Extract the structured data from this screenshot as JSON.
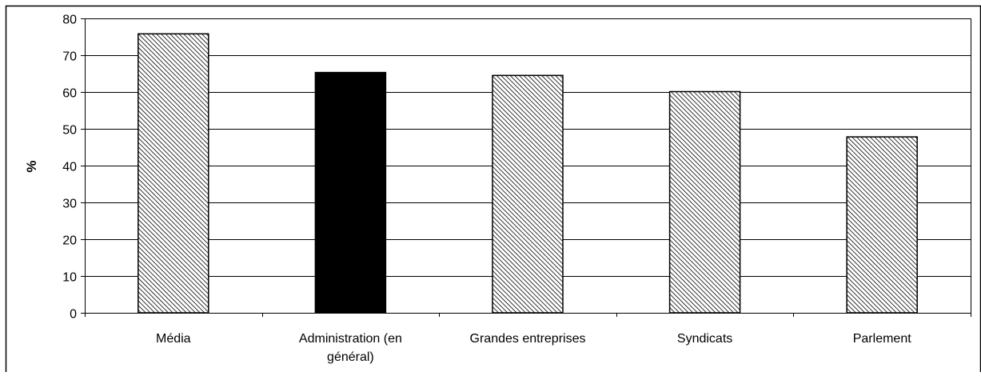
{
  "chart_data": {
    "type": "bar",
    "categories": [
      "Média",
      "Administration (en général)",
      "Grandes entreprises",
      "Syndicats",
      "Parlement"
    ],
    "category_label_lines": [
      [
        "Média"
      ],
      [
        "Administration (en",
        "général)"
      ],
      [
        "Grandes entreprises"
      ],
      [
        "Syndicats"
      ],
      [
        "Parlement"
      ]
    ],
    "values": [
      75.8,
      65.3,
      64.5,
      60.1,
      47.8
    ],
    "highlight": [
      false,
      true,
      false,
      false,
      false
    ],
    "title": "",
    "xlabel": "",
    "ylabel": "%",
    "ylim": [
      0,
      80
    ],
    "yticks": [
      0,
      10,
      20,
      30,
      40,
      50,
      60,
      70,
      80
    ],
    "grid": true,
    "legend": "none",
    "colors": {
      "bar_hatch": "#000000",
      "bar_fill": "#ffffff",
      "highlight_fill": "#000000",
      "grid": "#000000",
      "border": "#000000"
    }
  }
}
